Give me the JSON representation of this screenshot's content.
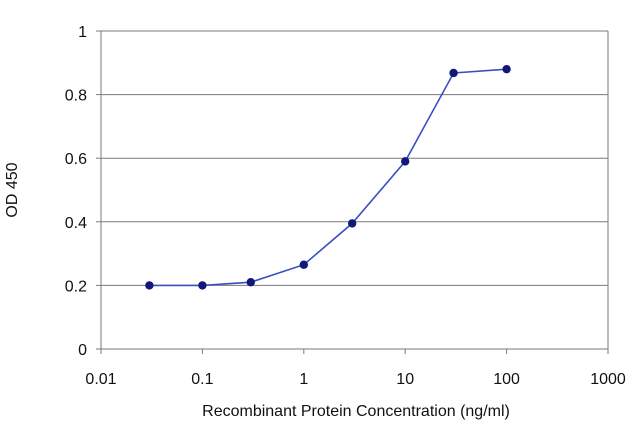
{
  "chart_data": {
    "type": "line",
    "title": "",
    "xlabel": "Recombinant Protein Concentration (ng/ml)",
    "ylabel": "OD 450",
    "x_scale": "log",
    "xlim": [
      0.01,
      1000
    ],
    "ylim": [
      0,
      1
    ],
    "x_ticks": [
      0.01,
      0.1,
      1,
      10,
      100,
      1000
    ],
    "x_tick_labels": [
      "0.01",
      "0.1",
      "1",
      "10",
      "100",
      "1000"
    ],
    "y_ticks": [
      0,
      0.2,
      0.4,
      0.6,
      0.8,
      1
    ],
    "y_tick_labels": [
      "0",
      "0.2",
      "0.4",
      "0.6",
      "0.8",
      "1"
    ],
    "grid": "horizontal",
    "legend": "none",
    "series": [
      {
        "x": [
          0.03,
          0.1,
          0.3,
          1,
          3,
          10,
          30,
          100
        ],
        "y": [
          0.2,
          0.2,
          0.21,
          0.265,
          0.395,
          0.59,
          0.868,
          0.88
        ]
      }
    ],
    "colors": {
      "line": "#3a4fc4",
      "marker": "#10187a",
      "grid": "#7a7a7a",
      "axis": "#7a7a7a"
    }
  }
}
